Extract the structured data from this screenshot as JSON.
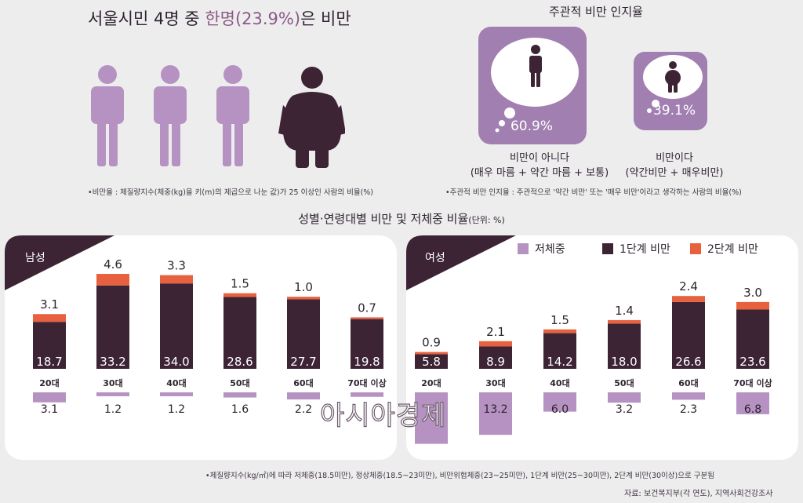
{
  "header": {
    "title_pre": "서울시민 4명 중 ",
    "title_highlight": "한명(23.9%)",
    "title_post": "은 비만",
    "note": "•비만율 : 체질량지수(체중(kg)을 키(m)의 제곱으로 나눈 값)가 25 이상인 사람의 비율(%)"
  },
  "perception": {
    "title": "주관적 비만 인지율",
    "not_obese": {
      "pct": "60.9%",
      "label": "비만이 아니다",
      "sub": "(매우 마름 + 약간 마름 + 보통)",
      "value": 60.9
    },
    "obese": {
      "pct": "39.1%",
      "label": "비만이다",
      "sub": "(약간비만 + 매우비만)",
      "value": 39.1
    },
    "note": "•주관적 비만 인지율 : 주관적으로 '약간 비만' 또는 '매우 비만'이라고 생각하는 사람의 비율(%)"
  },
  "section": {
    "title": "성별·연령대별 비만 및 저체중 비율",
    "unit": "(단위: %)"
  },
  "legend": [
    {
      "label": "저체중",
      "color": "#b592c2"
    },
    {
      "label": "1단계 비만",
      "color": "#3d2434"
    },
    {
      "label": "2단계 비만",
      "color": "#e8613f"
    }
  ],
  "colors": {
    "underweight": "#b592c2",
    "obese1": "#3d2434",
    "obese2": "#e8613f",
    "figure_light": "#b592c2",
    "figure_dark": "#3d2434"
  },
  "chart_data": [
    {
      "type": "bar",
      "title": "남성",
      "categories": [
        "20대",
        "30대",
        "40대",
        "50대",
        "60대",
        "70대 이상"
      ],
      "series": [
        {
          "name": "1단계 비만",
          "values": [
            18.7,
            33.2,
            34.0,
            28.6,
            27.7,
            19.8
          ]
        },
        {
          "name": "2단계 비만",
          "values": [
            3.1,
            4.6,
            3.3,
            1.5,
            1.0,
            0.7
          ]
        },
        {
          "name": "저체중",
          "values": [
            3.1,
            1.2,
            1.2,
            1.6,
            2.2,
            1.4
          ]
        }
      ],
      "value_labels_1": [
        "18.7",
        "33.2",
        "34.0",
        "28.6",
        "27.7",
        "19.8"
      ],
      "value_labels_2": [
        "3.1",
        "4.6",
        "3.3",
        "1.5",
        "1.0",
        "0.7"
      ],
      "value_labels_under": [
        "3.1",
        "1.2",
        "1.2",
        "1.6",
        "2.2",
        ""
      ]
    },
    {
      "type": "bar",
      "title": "여성",
      "categories": [
        "20대",
        "30대",
        "40대",
        "50대",
        "60대",
        "70대 이상"
      ],
      "series": [
        {
          "name": "1단계 비만",
          "values": [
            5.8,
            8.9,
            14.2,
            18.0,
            26.6,
            23.6
          ]
        },
        {
          "name": "2단계 비만",
          "values": [
            0.9,
            2.1,
            1.5,
            1.4,
            2.4,
            3.0
          ]
        },
        {
          "name": "저체중",
          "values": [
            16.0,
            13.2,
            6.0,
            3.2,
            2.3,
            6.8
          ]
        }
      ],
      "value_labels_1": [
        "5.8",
        "8.9",
        "14.2",
        "18.0",
        "26.6",
        "23.6"
      ],
      "value_labels_2": [
        "0.9",
        "2.1",
        "1.5",
        "1.4",
        "2.4",
        "3.0"
      ],
      "value_labels_under": [
        "",
        "13.2",
        "6.0",
        "3.2",
        "2.3",
        "6.8"
      ]
    }
  ],
  "footnote": "•체질량지수(kg/㎡)에 따라 저체중(18.5미만), 정상체중(18.5~23미만), 비만위험체중(23~25미만), 1단계 비만(25~30미만), 2단계 비만(30이상)으로 구분됨",
  "source": "자료: 보건복지부(각 연도), 지역사회건강조사",
  "watermark": "아시아경제"
}
